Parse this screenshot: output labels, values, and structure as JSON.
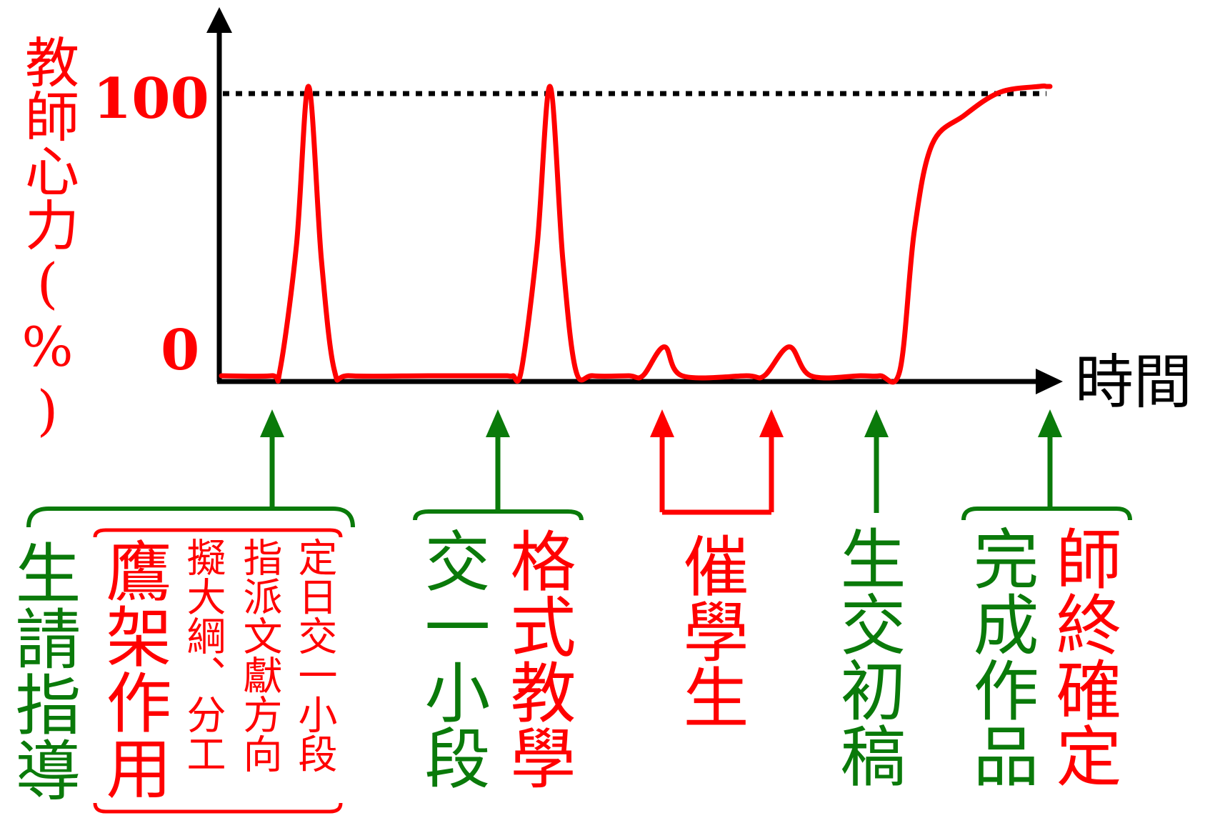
{
  "colors": {
    "red": "#ff0000",
    "green": "#0a7a0a",
    "black": "#000000"
  },
  "axes": {
    "y_label": "教師心力(%)",
    "x_label": "時間",
    "tick_100": "100",
    "tick_0": "0",
    "reference_line": "dotted-at-100"
  },
  "chart_data": {
    "type": "line",
    "title": "",
    "xlabel": "時間",
    "ylabel": "教師心力(%)",
    "ylim": [
      0,
      100
    ],
    "ytick_labels": [
      "0",
      "100"
    ],
    "series_values": [
      0,
      0,
      2,
      45,
      100,
      40,
      2,
      0,
      0,
      0,
      0,
      0,
      0,
      2,
      45,
      100,
      40,
      2,
      0,
      0,
      0,
      10,
      0,
      0,
      0,
      10,
      0,
      0,
      0,
      2,
      50,
      80,
      90,
      98,
      100,
      100,
      100
    ]
  },
  "annotations": {
    "g1": {
      "green_text": "生請指導",
      "red_title": "鷹架作用",
      "red_notes": [
        "擬大綱、分工",
        "指派文獻方向",
        "定日交一小段"
      ]
    },
    "g2": {
      "green_text": "交一小段",
      "red_text": "格式教學"
    },
    "g3": {
      "red_text": "催學生"
    },
    "g4": {
      "green_text": "生交初稿"
    },
    "g5": {
      "green_text": "完成作品",
      "red_text": "師終確定"
    }
  }
}
